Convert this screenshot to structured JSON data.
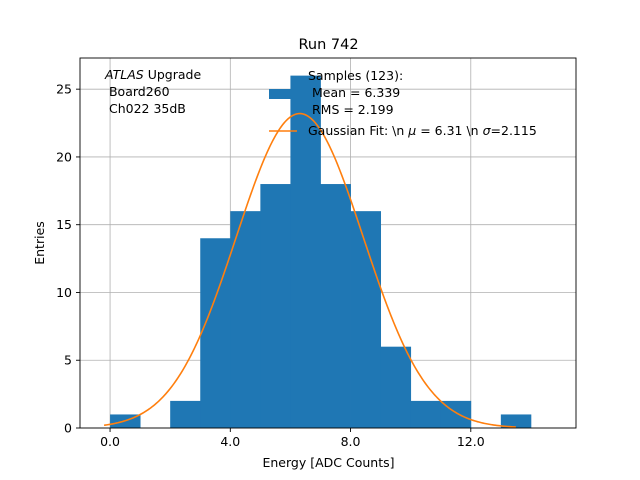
{
  "chart_data": {
    "type": "bar",
    "title": "Run 742",
    "xlabel": "Energy [ADC Counts]",
    "ylabel": "Entries",
    "xlim": [
      -1.0,
      15.5
    ],
    "ylim": [
      0,
      27.3
    ],
    "xticks": [
      0,
      4,
      8,
      12
    ],
    "xtick_labels": [
      "0.0",
      "4.0",
      "8.0",
      "12.0"
    ],
    "yticks": [
      0,
      5,
      10,
      15,
      20,
      25
    ],
    "ytick_labels": [
      "0",
      "5",
      "10",
      "15",
      "20",
      "25"
    ],
    "grid": true,
    "bin_width": 1,
    "bins": [
      {
        "left": 0,
        "count": 1
      },
      {
        "left": 1,
        "count": 0
      },
      {
        "left": 2,
        "count": 2
      },
      {
        "left": 3,
        "count": 14
      },
      {
        "left": 4,
        "count": 16
      },
      {
        "left": 5,
        "count": 18
      },
      {
        "left": 6,
        "count": 26
      },
      {
        "left": 7,
        "count": 18
      },
      {
        "left": 8,
        "count": 16
      },
      {
        "left": 9,
        "count": 6
      },
      {
        "left": 10,
        "count": 2
      },
      {
        "left": 11,
        "count": 2
      },
      {
        "left": 12,
        "count": 0
      },
      {
        "left": 13,
        "count": 1
      }
    ],
    "fit": {
      "mu": 6.31,
      "sigma": 2.115,
      "amplitude": 23.2,
      "x_range": [
        -0.2,
        13.5
      ]
    },
    "colors": {
      "histogram": "#1f77b4",
      "fit": "#ff7f0e",
      "grid": "#b0b0b0"
    },
    "annotation": {
      "line1_italic": "ATLAS",
      "line1_rest": " Upgrade",
      "line2": " Board260",
      "line3": " Ch022 35dB"
    },
    "legend": {
      "position": "top-right",
      "hist_lines": [
        "Samples (123):",
        " Mean = 6.339",
        " RMS = 2.199"
      ],
      "fit_prefix": "Gaussian Fit: \\n ",
      "fit_mu_symbol": "μ",
      "fit_mid": " = 6.31 \\n ",
      "fit_sigma_symbol": "σ",
      "fit_suffix": "=2.115"
    }
  }
}
